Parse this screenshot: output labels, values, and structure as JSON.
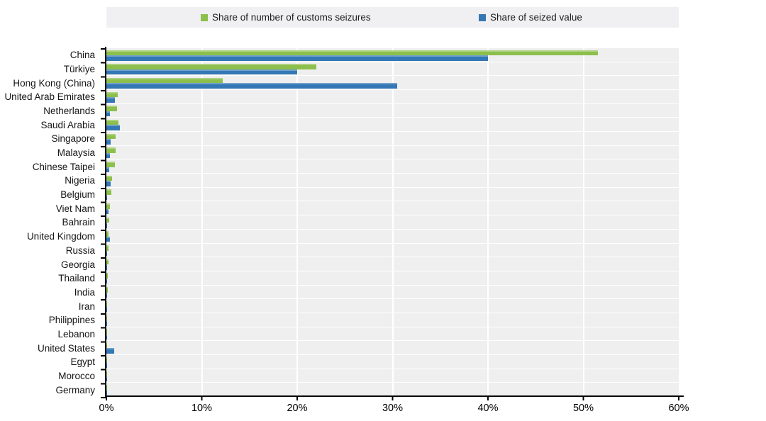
{
  "chart_data": {
    "type": "bar",
    "orientation": "horizontal",
    "title": "",
    "xlabel": "",
    "ylabel": "",
    "xlim": [
      0,
      60
    ],
    "x_tick_labels": [
      "0%",
      "10%",
      "20%",
      "30%",
      "40%",
      "50%",
      "60%"
    ],
    "grid": "vertical white gridlines every 10%",
    "legend_position": "top",
    "plot_background": "#efefef",
    "categories": [
      "China",
      "Türkiye",
      "Hong Kong (China)",
      "United Arab Emirates",
      "Netherlands",
      "Saudi Arabia",
      "Singapore",
      "Malaysia",
      "Chinese Taipei",
      "Nigeria",
      "Belgium",
      "Viet Nam",
      "Bahrain",
      "United Kingdom",
      "Russia",
      "Georgia",
      "Thailand",
      "India",
      "Iran",
      "Philippines",
      "Lebanon",
      "United States",
      "Egypt",
      "Morocco",
      "Germany"
    ],
    "series": [
      {
        "name": "Share of number of customs seizures",
        "color": "#8CBF4B",
        "values": [
          51.5,
          22.0,
          12.2,
          1.2,
          1.1,
          1.25,
          1.0,
          1.0,
          0.9,
          0.6,
          0.5,
          0.4,
          0.3,
          0.25,
          0.25,
          0.2,
          0.15,
          0.12,
          0.1,
          0.08,
          0.07,
          0.1,
          0.06,
          0.05,
          0.05
        ]
      },
      {
        "name": "Share of seized value",
        "color": "#3377B5",
        "values": [
          40.0,
          20.0,
          30.5,
          0.9,
          0.35,
          1.4,
          0.45,
          0.35,
          0.3,
          0.45,
          0.1,
          0.25,
          0.1,
          0.4,
          0.05,
          0.05,
          0.1,
          0.05,
          0.03,
          0.03,
          0.1,
          0.8,
          0.02,
          0.02,
          0.02
        ]
      }
    ]
  }
}
